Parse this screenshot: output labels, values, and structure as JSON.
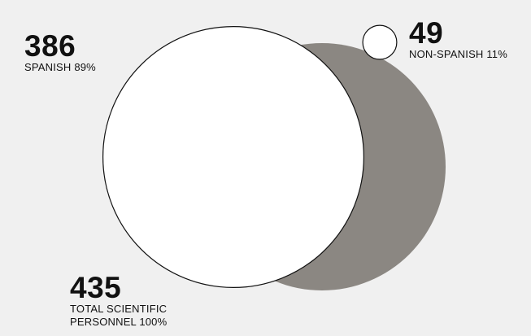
{
  "chart_data": {
    "type": "bubble",
    "series": [
      {
        "key": "total",
        "value": 435,
        "value_label": "435",
        "label": "TOTAL SCIENTIFIC PERSONNEL 100%",
        "percent": 100,
        "color": "#8b8782"
      },
      {
        "key": "spanish",
        "value": 386,
        "value_label": "386",
        "label": "SPANISH 89%",
        "percent": 89,
        "color": "#ffffff"
      },
      {
        "key": "non_spanish",
        "value": 49,
        "value_label": "49",
        "label": "NON-SPANISH 11%",
        "percent": 11,
        "color": "#ffffff"
      }
    ]
  },
  "colors": {
    "background": "#f0f0f0",
    "outline": "#111111",
    "text": "#111111"
  }
}
